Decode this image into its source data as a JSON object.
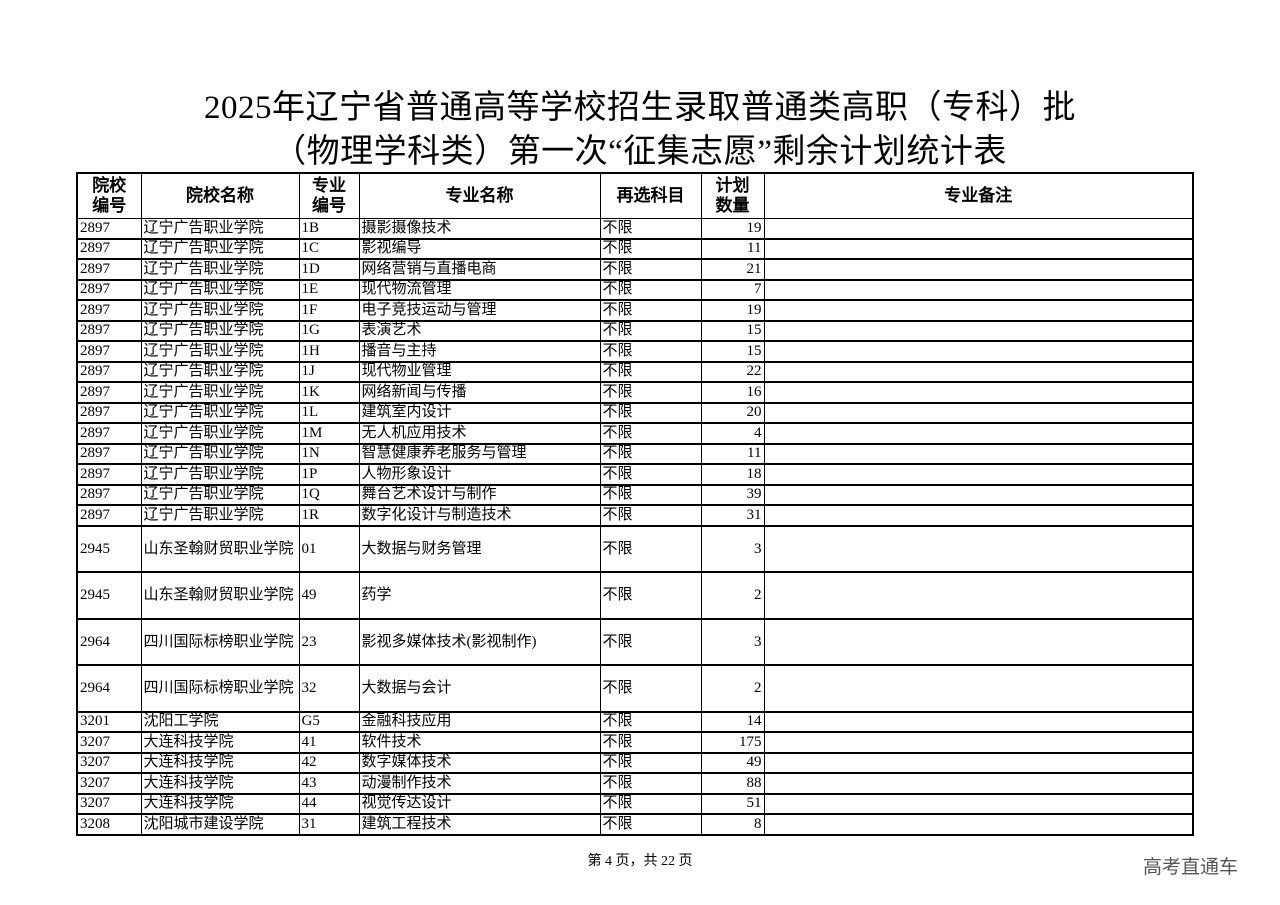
{
  "title": {
    "line1": "2025年辽宁省普通高等学校招生录取普通类高职（专科）批",
    "line2": "（物理学科类）第一次“征集志愿”剩余计划统计表"
  },
  "table": {
    "headers": [
      "院校编号",
      "院校名称",
      "专业编号",
      "专业名称",
      "再选科目",
      "计划数量",
      "专业备注"
    ],
    "rows": [
      [
        "2897",
        "辽宁广告职业学院",
        "1B",
        "摄影摄像技术",
        "不限",
        "19",
        ""
      ],
      [
        "2897",
        "辽宁广告职业学院",
        "1C",
        "影视编导",
        "不限",
        "11",
        ""
      ],
      [
        "2897",
        "辽宁广告职业学院",
        "1D",
        "网络营销与直播电商",
        "不限",
        "21",
        ""
      ],
      [
        "2897",
        "辽宁广告职业学院",
        "1E",
        "现代物流管理",
        "不限",
        "7",
        ""
      ],
      [
        "2897",
        "辽宁广告职业学院",
        "1F",
        "电子竞技运动与管理",
        "不限",
        "19",
        ""
      ],
      [
        "2897",
        "辽宁广告职业学院",
        "1G",
        "表演艺术",
        "不限",
        "15",
        ""
      ],
      [
        "2897",
        "辽宁广告职业学院",
        "1H",
        "播音与主持",
        "不限",
        "15",
        ""
      ],
      [
        "2897",
        "辽宁广告职业学院",
        "1J",
        "现代物业管理",
        "不限",
        "22",
        ""
      ],
      [
        "2897",
        "辽宁广告职业学院",
        "1K",
        "网络新闻与传播",
        "不限",
        "16",
        ""
      ],
      [
        "2897",
        "辽宁广告职业学院",
        "1L",
        "建筑室内设计",
        "不限",
        "20",
        ""
      ],
      [
        "2897",
        "辽宁广告职业学院",
        "1M",
        "无人机应用技术",
        "不限",
        "4",
        ""
      ],
      [
        "2897",
        "辽宁广告职业学院",
        "1N",
        "智慧健康养老服务与管理",
        "不限",
        "11",
        ""
      ],
      [
        "2897",
        "辽宁广告职业学院",
        "1P",
        "人物形象设计",
        "不限",
        "18",
        ""
      ],
      [
        "2897",
        "辽宁广告职业学院",
        "1Q",
        "舞台艺术设计与制作",
        "不限",
        "39",
        ""
      ],
      [
        "2897",
        "辽宁广告职业学院",
        "1R",
        "数字化设计与制造技术",
        "不限",
        "31",
        ""
      ],
      [
        "2945",
        "山东圣翰财贸职业学院",
        "01",
        "大数据与财务管理",
        "不限",
        "3",
        ""
      ],
      [
        "2945",
        "山东圣翰财贸职业学院",
        "49",
        "药学",
        "不限",
        "2",
        ""
      ],
      [
        "2964",
        "四川国际标榜职业学院",
        "23",
        "影视多媒体技术(影视制作)",
        "不限",
        "3",
        ""
      ],
      [
        "2964",
        "四川国际标榜职业学院",
        "32",
        "大数据与会计",
        "不限",
        "2",
        ""
      ],
      [
        "3201",
        "沈阳工学院",
        "G5",
        "金融科技应用",
        "不限",
        "14",
        ""
      ],
      [
        "3207",
        "大连科技学院",
        "41",
        "软件技术",
        "不限",
        "175",
        ""
      ],
      [
        "3207",
        "大连科技学院",
        "42",
        "数字媒体技术",
        "不限",
        "49",
        ""
      ],
      [
        "3207",
        "大连科技学院",
        "43",
        "动漫制作技术",
        "不限",
        "88",
        ""
      ],
      [
        "3207",
        "大连科技学院",
        "44",
        "视觉传达设计",
        "不限",
        "51",
        ""
      ],
      [
        "3208",
        "沈阳城市建设学院",
        "31",
        "建筑工程技术",
        "不限",
        "8",
        ""
      ]
    ]
  },
  "footer": {
    "page_info": "第 4 页，共 22 页"
  },
  "watermark": "高考直通车"
}
